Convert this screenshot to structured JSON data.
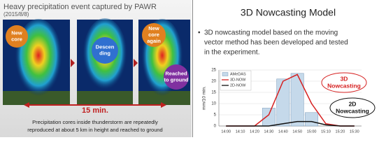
{
  "left": {
    "title": "Heavy precipitation event captured by PAWR",
    "date": "(2015/8/8)",
    "bubbles": [
      [
        "New",
        "core"
      ],
      [
        "Descen",
        "ding"
      ],
      [
        "New",
        "core",
        "again"
      ],
      [
        "Reached",
        "to ground"
      ]
    ],
    "duration": "15 min.",
    "caption": [
      "Precipitation cores inside thunderstorm are repeatedly",
      "reproduced at about 5 km in height and reached to ground"
    ]
  },
  "right": {
    "title": "3D Nowcasting Model",
    "bullet": [
      "3D nowcasting model based on the moving",
      "vector method has been developed and tested",
      "in the experiment."
    ]
  },
  "chart_data": {
    "type": "combo",
    "ylabel": "mm/10 min.",
    "categories": [
      "14:00",
      "14:10",
      "14:20",
      "14:30",
      "14:40",
      "14:50",
      "15:00",
      "15:10",
      "15:20",
      "15:30"
    ],
    "series": [
      {
        "name": "AMeDAS",
        "type": "bar",
        "color": "#c5d9ea",
        "values": [
          0,
          0,
          0,
          8,
          21,
          23.5,
          6,
          0,
          0,
          0
        ]
      },
      {
        "name": "3D-NOW",
        "type": "line",
        "color": "#d62020",
        "values": [
          0,
          0,
          0,
          5,
          20,
          23,
          10,
          1,
          0,
          0
        ]
      },
      {
        "name": "2D-NOW",
        "type": "line",
        "color": "#111111",
        "values": [
          0,
          0,
          0,
          0,
          1,
          2,
          2,
          0.5,
          0,
          0
        ]
      }
    ],
    "ylim": [
      0,
      25
    ],
    "yticks": [
      0,
      5,
      10,
      15,
      20,
      25
    ],
    "grid": true,
    "annotations": [
      [
        "3D",
        "Nowcasting"
      ],
      [
        "2D",
        "Nowcasting"
      ]
    ]
  }
}
